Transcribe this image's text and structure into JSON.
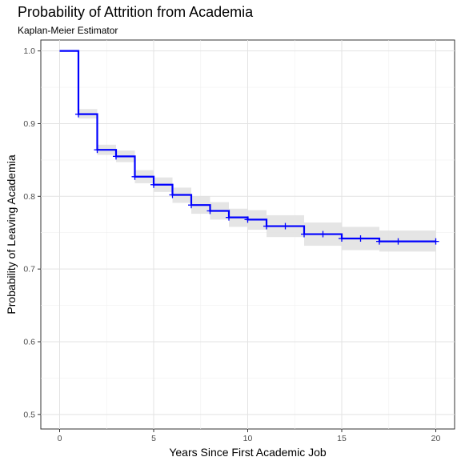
{
  "chart_data": {
    "type": "line",
    "title": "Probability of Attrition from Academia",
    "subtitle": "Kaplan-Meier Estimator",
    "xlabel": "Years Since First Academic Job",
    "ylabel": "Probability of Leaving Academia",
    "xlim": [
      -1,
      21
    ],
    "ylim": [
      0.48,
      1.015
    ],
    "x_ticks": [
      0,
      5,
      10,
      15,
      20
    ],
    "y_ticks": [
      0.5,
      0.6,
      0.7,
      0.8,
      0.9,
      1.0
    ],
    "x_tick_labels": [
      "0",
      "5",
      "10",
      "15",
      "20"
    ],
    "y_tick_labels": [
      "0.5",
      "0.6",
      "0.7",
      "0.8",
      "0.9",
      "1.0"
    ],
    "grid": true,
    "series": [
      {
        "step": "post",
        "color": "#0000ff",
        "band_color": "#e0e0e0",
        "x": [
          0,
          1,
          2,
          3,
          4,
          5,
          6,
          7,
          8,
          9,
          10,
          11,
          13,
          15,
          17,
          20
        ],
        "y": [
          1.0,
          0.913,
          0.864,
          0.855,
          0.827,
          0.816,
          0.802,
          0.788,
          0.78,
          0.771,
          0.768,
          0.759,
          0.748,
          0.742,
          0.738,
          0.738
        ],
        "lower": [
          1.0,
          0.907,
          0.857,
          0.847,
          0.818,
          0.806,
          0.791,
          0.776,
          0.768,
          0.758,
          0.754,
          0.744,
          0.732,
          0.726,
          0.724,
          0.724
        ],
        "upper": [
          1.0,
          0.92,
          0.871,
          0.863,
          0.836,
          0.826,
          0.812,
          0.8,
          0.792,
          0.783,
          0.781,
          0.774,
          0.764,
          0.758,
          0.753,
          0.753
        ],
        "censor_x": [
          1,
          2,
          3,
          4,
          5,
          6,
          7,
          8,
          9,
          10,
          11,
          12,
          13,
          14,
          15,
          16,
          17,
          18,
          20
        ],
        "censor_y": [
          0.913,
          0.864,
          0.855,
          0.827,
          0.816,
          0.802,
          0.788,
          0.78,
          0.771,
          0.768,
          0.759,
          0.759,
          0.748,
          0.748,
          0.742,
          0.742,
          0.738,
          0.738,
          0.738
        ]
      }
    ]
  }
}
